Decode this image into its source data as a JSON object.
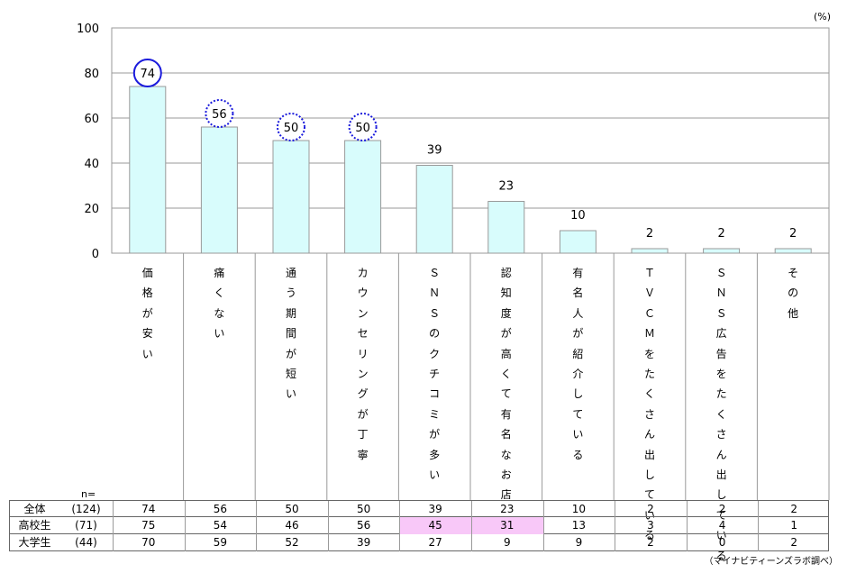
{
  "unit": "(%)",
  "credit": "（マイナビティーンズラボ調べ）",
  "n_label": "n=",
  "chart_data": {
    "type": "bar",
    "title": "",
    "xlabel": "",
    "ylabel": "",
    "ylim": [
      0,
      100
    ],
    "yticks": [
      0,
      20,
      40,
      60,
      80,
      100
    ],
    "grid": true,
    "categories": [
      "価格が安い",
      "痛くない",
      "通う期間が短い",
      "カウンセリングが丁寧",
      "ＳＮＳのクチコミが多い",
      "認知度が高くて有名なお店",
      "有名人が紹介している",
      "ＴＶＣＭをたくさん出している",
      "ＳＮＳ広告をたくさん出している",
      "その他"
    ],
    "values": [
      74,
      56,
      50,
      50,
      39,
      23,
      10,
      2,
      2,
      2
    ],
    "bar_color": "#d8fcfc",
    "highlight_solid": [
      0
    ],
    "highlight_dotted": [
      1,
      2,
      3
    ],
    "highlight_color": "#1a1adc"
  },
  "table": {
    "rows": [
      {
        "label": "全体",
        "n": "(124)",
        "values": [
          "74",
          "56",
          "50",
          "50",
          "39",
          "23",
          "10",
          "2",
          "2",
          "2"
        ]
      },
      {
        "label": "高校生",
        "n": "(71)",
        "values": [
          "75",
          "54",
          "46",
          "56",
          "45",
          "31",
          "13",
          "3",
          "4",
          "1"
        ]
      },
      {
        "label": "大学生",
        "n": "(44)",
        "values": [
          "70",
          "59",
          "52",
          "39",
          "27",
          "9",
          "9",
          "2",
          "0",
          "2"
        ]
      }
    ],
    "highlight": [
      {
        "row": 1,
        "col": 4
      },
      {
        "row": 1,
        "col": 5
      }
    ],
    "highlight_color": "#f8c8f8"
  }
}
